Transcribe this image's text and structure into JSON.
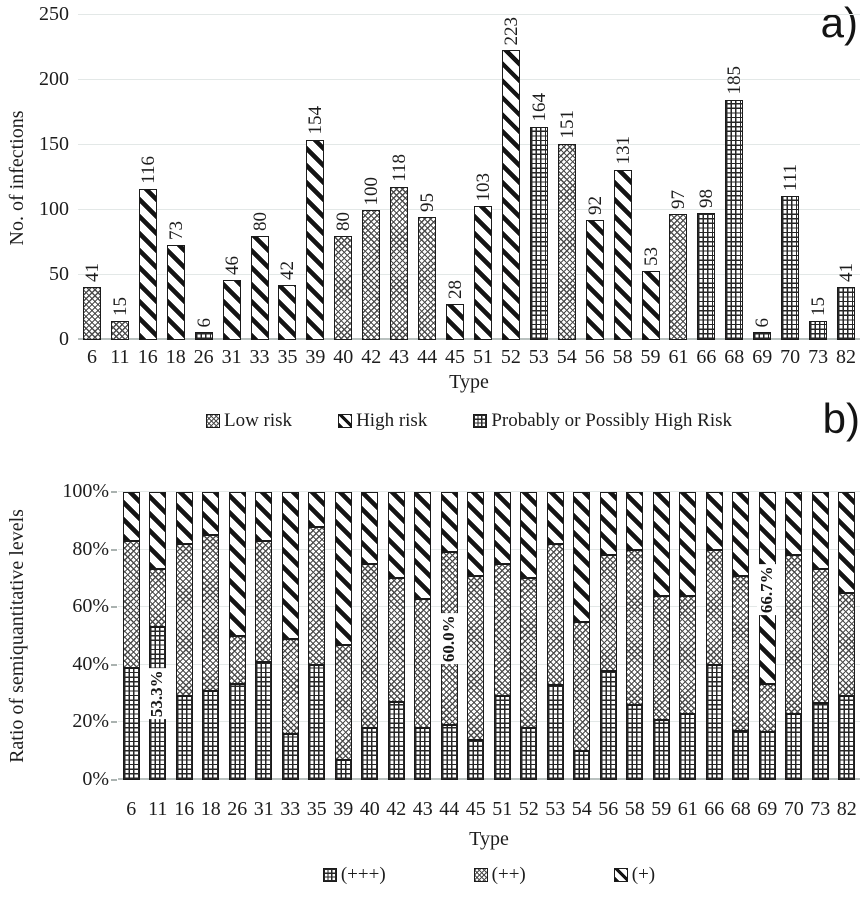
{
  "colors": {
    "text": "#1d1d1d",
    "gridline": "#e3e8e7",
    "baseline": "#b9c1bf",
    "bar_outline": "#1b1b1b",
    "background": "#ffffff"
  },
  "chart_data": [
    {
      "id": "a",
      "type": "bar",
      "corner_label": "a)",
      "title": "",
      "xlabel": "Type",
      "ylabel": "No. of infections",
      "ylim": [
        0,
        250
      ],
      "ytick_values": [
        0,
        50,
        100,
        150,
        200,
        250
      ],
      "ytick_labels": [
        "0",
        "50",
        "100",
        "150",
        "200",
        "250"
      ],
      "grid": true,
      "legend_position": "bottom",
      "categories": [
        "6",
        "11",
        "16",
        "18",
        "26",
        "31",
        "33",
        "35",
        "39",
        "40",
        "42",
        "43",
        "44",
        "45",
        "51",
        "52",
        "53",
        "54",
        "56",
        "58",
        "59",
        "61",
        "66",
        "68",
        "69",
        "70",
        "73",
        "82"
      ],
      "values": [
        41,
        15,
        116,
        73,
        6,
        46,
        80,
        42,
        154,
        80,
        100,
        118,
        95,
        28,
        103,
        223,
        164,
        151,
        92,
        131,
        53,
        97,
        98,
        185,
        6,
        111,
        15,
        41
      ],
      "bar_groups": [
        "low",
        "low",
        "high",
        "high",
        "probable",
        "high",
        "high",
        "high",
        "high",
        "low",
        "low",
        "low",
        "low",
        "high",
        "high",
        "high",
        "probable",
        "low",
        "high",
        "high",
        "high",
        "low",
        "probable",
        "probable",
        "probable",
        "probable",
        "probable",
        "probable"
      ],
      "group_patterns": {
        "low": "weave",
        "high": "diag",
        "probable": "grid"
      },
      "legend": [
        {
          "label": "Low risk",
          "pattern": "weave"
        },
        {
          "label": "High risk",
          "pattern": "diag"
        },
        {
          "label": "Probably or Possibly High Risk",
          "pattern": "grid"
        }
      ]
    },
    {
      "id": "b",
      "type": "stacked-bar-100",
      "corner_label": "b)",
      "title": "",
      "xlabel": "Type",
      "ylabel": "Ratio of semiquantitative levels",
      "ylim": [
        0,
        100
      ],
      "ytick_values": [
        0,
        20,
        40,
        60,
        80,
        100
      ],
      "ytick_labels": [
        "0%",
        "20%",
        "40%",
        "60%",
        "80%",
        "100%"
      ],
      "grid": true,
      "legend_position": "bottom",
      "categories": [
        "6",
        "11",
        "16",
        "18",
        "26",
        "31",
        "33",
        "35",
        "39",
        "40",
        "42",
        "43",
        "44",
        "45",
        "51",
        "52",
        "53",
        "54",
        "56",
        "58",
        "59",
        "61",
        "66",
        "68",
        "69",
        "70",
        "73",
        "82"
      ],
      "series": [
        {
          "name": "(+++)",
          "pattern": "grid",
          "values": [
            39,
            53.3,
            29,
            31,
            33.3,
            41,
            16,
            40,
            7,
            18,
            27,
            18,
            19,
            14,
            29,
            18,
            33,
            10,
            38,
            26,
            21,
            23,
            40,
            17,
            16.7,
            23,
            26.7,
            29
          ]
        },
        {
          "name": "(++)",
          "pattern": "weave",
          "values": [
            44,
            20,
            53,
            54,
            16.7,
            42,
            33,
            48,
            40,
            57,
            43,
            45,
            60,
            57,
            46,
            52,
            49,
            45,
            40,
            54,
            43,
            41,
            40,
            54,
            16.7,
            55,
            46.6,
            36
          ]
        },
        {
          "name": "(+)",
          "pattern": "diag",
          "values": [
            17,
            26.7,
            18,
            15,
            50,
            17,
            51,
            12,
            53,
            25,
            30,
            37,
            21,
            29,
            25,
            30,
            18,
            45,
            22,
            20,
            36,
            36,
            20,
            29,
            66.6,
            22,
            26.7,
            35
          ]
        }
      ],
      "annotations": [
        {
          "category": "11",
          "text": "53.3%",
          "center_pct": 30
        },
        {
          "category": "44",
          "text": "60.0%",
          "center_pct": 49
        },
        {
          "category": "69",
          "text": "66.7%",
          "center_pct": 66
        }
      ],
      "legend": [
        {
          "label": "(+++)",
          "pattern": "grid"
        },
        {
          "label": "(++)",
          "pattern": "weave"
        },
        {
          "label": "(+)",
          "pattern": "diag"
        }
      ]
    }
  ]
}
